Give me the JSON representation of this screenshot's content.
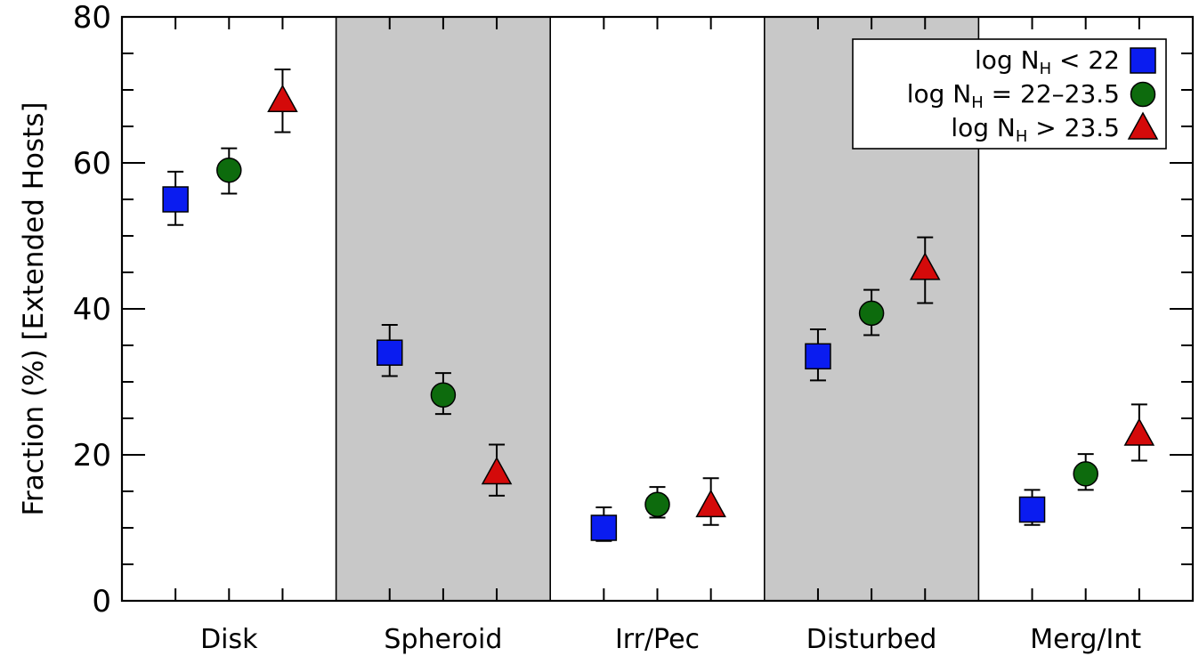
{
  "chart_data": {
    "type": "scatter",
    "title": "",
    "xlabel": "",
    "ylabel": "Fraction (%) [Extended Hosts]",
    "ylim": [
      0,
      80
    ],
    "yticks": [
      "0",
      "20",
      "40",
      "60",
      "80"
    ],
    "y_minor_step": 5,
    "categories": [
      "Disk",
      "Spheroid",
      "Irr/Pec",
      "Disturbed",
      "Merg/Int"
    ],
    "shaded_categories": [
      "Spheroid",
      "Disturbed"
    ],
    "legend_position": "top-right",
    "series": [
      {
        "name_parts": [
          "log N",
          "H",
          " < 22"
        ],
        "marker": "square",
        "color": "#0a1cf0",
        "values": [
          55.0,
          34.0,
          10.0,
          33.5,
          12.5
        ],
        "err_low": [
          51.5,
          30.8,
          8.2,
          30.2,
          10.4
        ],
        "err_high": [
          58.8,
          37.8,
          12.8,
          37.2,
          15.2
        ]
      },
      {
        "name_parts": [
          "log N",
          "H",
          " = 22–23.5"
        ],
        "marker": "circle",
        "color": "#0d6b0d",
        "values": [
          59.0,
          28.2,
          13.2,
          39.4,
          17.4
        ],
        "err_low": [
          55.8,
          25.6,
          11.4,
          36.4,
          15.2
        ],
        "err_high": [
          62.0,
          31.2,
          15.6,
          42.6,
          20.1
        ]
      },
      {
        "name_parts": [
          "log N",
          "H",
          " > 23.5"
        ],
        "marker": "triangle",
        "color": "#d40a0a",
        "values": [
          68.5,
          17.5,
          13.0,
          45.5,
          22.8
        ],
        "err_low": [
          64.2,
          14.4,
          10.4,
          40.8,
          19.2
        ],
        "err_high": [
          72.8,
          21.4,
          16.8,
          49.8,
          26.9
        ]
      }
    ],
    "shade_color": "#c8c8c8"
  }
}
